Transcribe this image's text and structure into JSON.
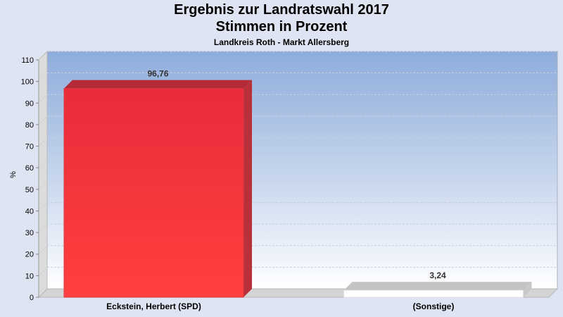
{
  "header": {
    "title": "Ergebnis zur Landratswahl 2017",
    "subtitle": "Stimmen in Prozent",
    "region": "Landkreis Roth - Markt Allersberg"
  },
  "axis": {
    "ylabel": "%",
    "yticks": [
      "0",
      "10",
      "20",
      "30",
      "40",
      "50",
      "60",
      "70",
      "80",
      "90",
      "100",
      "110"
    ]
  },
  "bars": [
    {
      "label": "Eckstein, Herbert (SPD)",
      "value_label": "96,76",
      "value": 96.76,
      "color": "#ff3333"
    },
    {
      "label": "(Sonstige)",
      "value_label": "3,24",
      "value": 3.24,
      "color": "#ffffff"
    }
  ],
  "chart_data": {
    "type": "bar",
    "title": "Ergebnis zur Landratswahl 2017 - Stimmen in Prozent",
    "subtitle": "Landkreis Roth - Markt Allersberg",
    "categories": [
      "Eckstein, Herbert (SPD)",
      "(Sonstige)"
    ],
    "values": [
      96.76,
      3.24
    ],
    "data_labels": [
      "96,76",
      "3,24"
    ],
    "xlabel": "",
    "ylabel": "%",
    "ylim": [
      0,
      110
    ],
    "yticks": [
      0,
      10,
      20,
      30,
      40,
      50,
      60,
      70,
      80,
      90,
      100,
      110
    ],
    "grid": true,
    "legend": "none",
    "style": "3d"
  }
}
